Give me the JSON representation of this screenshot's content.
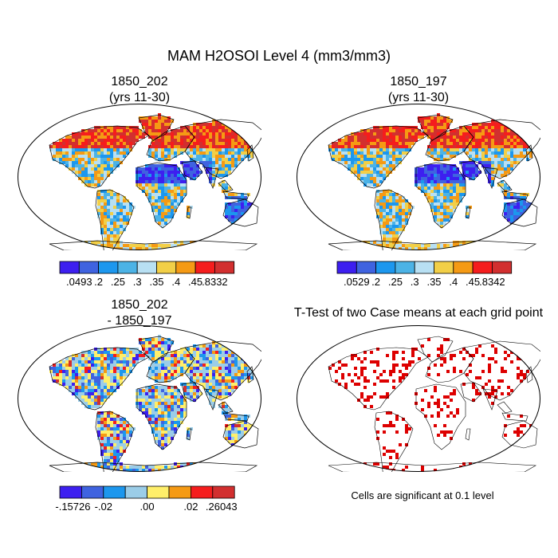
{
  "figure": {
    "title": "MAM H2OSOI Level 4 (mm3/mm3)",
    "caption": "Cells are significant at 0.1 level"
  },
  "colors": {
    "outline": "#000000",
    "significant": "#dd0000",
    "absolute_scale": [
      "#3d1ff0",
      "#3f63e0",
      "#1c97ee",
      "#4cb3e6",
      "#b8e0f3",
      "#f2cf47",
      "#f59a14",
      "#f51d1d",
      "#d22f2f"
    ],
    "difference_scale": [
      "#3d1ff0",
      "#3f63e0",
      "#1c97ee",
      "#9bcde8",
      "#ffef6a",
      "#f59a14",
      "#f51d1d",
      "#d22f2f"
    ]
  },
  "chart_data": [
    {
      "type": "heatmap",
      "panel": "top-left",
      "title": "1850_202",
      "subtitle": "(yrs 11-30)",
      "projection": "Robinson",
      "colorbar_labels": [
        ".0493",
        ".2",
        ".25",
        ".3",
        ".35",
        ".4",
        ".45",
        ".8332"
      ],
      "range": [
        0.0493,
        0.8332
      ]
    },
    {
      "type": "heatmap",
      "panel": "top-right",
      "title": "1850_197",
      "subtitle": "(yrs 11-30)",
      "projection": "Robinson",
      "colorbar_labels": [
        ".0529",
        ".2",
        ".25",
        ".3",
        ".35",
        ".4",
        ".45",
        ".8342"
      ],
      "range": [
        0.0529,
        0.8342
      ]
    },
    {
      "type": "heatmap",
      "panel": "bottom-left",
      "title": "1850_202",
      "subtitle": "- 1850_197",
      "projection": "Robinson",
      "colorbar_labels": [
        "-.15726",
        "-.02",
        ".00",
        ".02",
        ".26043"
      ],
      "range": [
        -0.15726,
        0.26043
      ]
    },
    {
      "type": "heatmap",
      "panel": "bottom-right",
      "title": "T-Test of two Case means at each grid point",
      "projection": "Robinson",
      "significance_level": 0.1
    }
  ]
}
